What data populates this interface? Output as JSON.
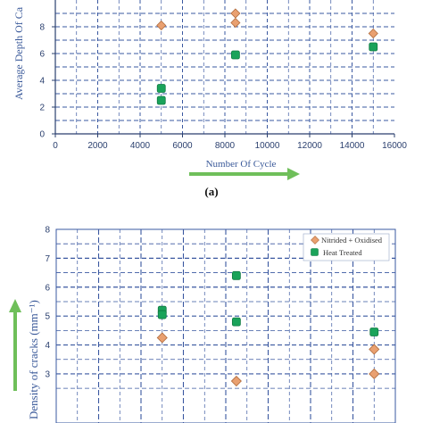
{
  "colors": {
    "nitrided": "#e9a070",
    "nitrided_stroke": "#b06b3c",
    "heat_treated": "#1aa35a",
    "heat_treated_stroke": "#117a41",
    "grid": "#3a58a0",
    "axis_text": "#2a3f6e",
    "arrow": "#5cab4c"
  },
  "chart_data": [
    {
      "panel_label": "(a)",
      "type": "scatter",
      "xlabel": "Number Of Cycle",
      "ylabel": "Average Depth Of Ca",
      "xlim": [
        0,
        16000
      ],
      "ylim": [
        0,
        10
      ],
      "x_ticks": [
        "0",
        "2000",
        "4000",
        "6000",
        "8000",
        "10000",
        "12000",
        "14000",
        "16000"
      ],
      "y_ticks": [
        "0",
        "2",
        "4",
        "6",
        "8"
      ],
      "series": [
        {
          "marker": "diamond",
          "color_key": "nitrided",
          "points": [
            [
              5000,
              8.1
            ],
            [
              8500,
              9.0
            ],
            [
              8500,
              8.3
            ],
            [
              15000,
              7.5
            ]
          ]
        },
        {
          "marker": "square",
          "color_key": "heat_treated",
          "points": [
            [
              5000,
              3.4
            ],
            [
              5000,
              2.5
            ],
            [
              8500,
              5.9
            ],
            [
              15000,
              6.5
            ]
          ]
        }
      ]
    },
    {
      "type": "scatter",
      "ylabel": "Density of cracks (mm⁻¹)",
      "xlim": [
        0,
        16000
      ],
      "ylim": [
        2,
        8
      ],
      "y_ticks": [
        "3",
        "4",
        "5",
        "6",
        "7",
        "8"
      ],
      "legend": [
        "Nitrided + Oxidised",
        "Heat Treated"
      ],
      "legend_position": "top-right",
      "series": [
        {
          "name": "Nitrided + Oxidised",
          "marker": "diamond",
          "color_key": "nitrided",
          "points": [
            [
              5000,
              4.25
            ],
            [
              8500,
              2.75
            ],
            [
              15000,
              3.85
            ],
            [
              15000,
              3.0
            ]
          ]
        },
        {
          "name": "Heat Treated",
          "marker": "square",
          "color_key": "heat_treated",
          "points": [
            [
              5000,
              5.2
            ],
            [
              5000,
              5.05
            ],
            [
              8500,
              6.4
            ],
            [
              8500,
              4.8
            ],
            [
              15000,
              4.45
            ]
          ]
        }
      ]
    }
  ]
}
